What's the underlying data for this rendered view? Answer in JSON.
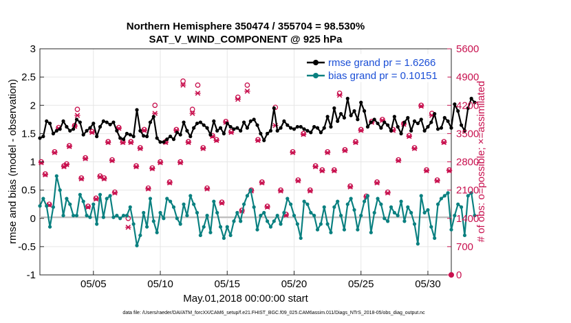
{
  "chart_data": {
    "type": "line",
    "title": "Northern Hemisphere 350474 / 355704 = 98.530%",
    "subtitle": "SAT_V_WIND_COMPONENT @ 925 hPa",
    "xlabel": "May.01,2018 00:00:00 start",
    "ylabel": "rmse and bias (model - observation)",
    "ylabel_right": "# of obs: o=possible; ×=assimilated",
    "footer": "data file: /Users/raeder/DAI/ATM_forcXX/CAM6_setup/f.e21.FHIST_BGC.f09_025.CAM6assim.011/Diags_NTrS_2018-05/obs_diag_output.nc",
    "xlim": [
      1,
      31.75
    ],
    "ylim": [
      -1,
      3
    ],
    "ylim_right": [
      0,
      5600
    ],
    "x_ticks": [
      5,
      10,
      15,
      20,
      25,
      30
    ],
    "x_tick_labels": [
      "05/05",
      "05/10",
      "05/15",
      "05/20",
      "05/25",
      "05/30"
    ],
    "y_ticks": [
      -1,
      -0.5,
      0,
      0.5,
      1,
      1.5,
      2,
      2.5,
      3
    ],
    "y_tick_labels": [
      "-1",
      "-0.5",
      "0",
      "0.5",
      "1",
      "1.5",
      "2",
      "2.5",
      "3"
    ],
    "y_right_ticks": [
      0,
      700,
      1400,
      2100,
      2800,
      3500,
      4200,
      4900,
      5600
    ],
    "y_right_tick_labels": [
      "0",
      "700",
      "1400",
      "2100",
      "2800",
      "3500",
      "4200",
      "4900",
      "5600"
    ],
    "grid": true,
    "legend_position": "top-right",
    "x_start": 1.0,
    "x_step": 0.25,
    "series": [
      {
        "name": "rmse grand pr = 1.6266",
        "color": "#000000",
        "marker": "filled-circle",
        "values": [
          1.42,
          1.45,
          1.72,
          1.68,
          1.5,
          1.55,
          1.58,
          1.72,
          1.62,
          1.55,
          1.58,
          1.75,
          1.7,
          1.48,
          1.55,
          1.6,
          1.68,
          1.45,
          1.62,
          1.72,
          1.7,
          1.66,
          1.7,
          1.55,
          1.42,
          1.4,
          1.5,
          1.48,
          1.45,
          1.92,
          1.55,
          1.46,
          1.45,
          1.7,
          1.8,
          1.42,
          1.35,
          1.35,
          1.4,
          1.45,
          1.4,
          1.52,
          1.48,
          1.7,
          1.55,
          1.45,
          1.6,
          1.68,
          1.7,
          1.65,
          1.6,
          1.48,
          1.72,
          1.55,
          1.6,
          1.5,
          1.68,
          1.62,
          1.58,
          1.6,
          1.55,
          1.7,
          1.6,
          1.72,
          1.75,
          1.65,
          1.5,
          1.38,
          1.5,
          1.55,
          1.95,
          1.55,
          1.6,
          1.72,
          1.65,
          1.6,
          1.58,
          1.62,
          1.62,
          1.58,
          1.55,
          1.52,
          1.62,
          1.6,
          1.52,
          1.6,
          1.8,
          1.62,
          1.95,
          1.72,
          1.85,
          1.78,
          2.12,
          1.82,
          1.9,
          1.75,
          2.05,
          1.9,
          1.62,
          1.7,
          1.75,
          1.68,
          1.6,
          1.7,
          1.65,
          1.55,
          1.8,
          1.62,
          1.5,
          1.7,
          1.78,
          1.55,
          1.72,
          1.68,
          1.75,
          1.55,
          1.62,
          1.7,
          1.85,
          1.58,
          1.6,
          1.78,
          1.72,
          1.6,
          2.02,
          1.9,
          1.65,
          1.55,
          1.95,
          2.12,
          2.05
        ]
      },
      {
        "name": "bias grand pr = 0.10151",
        "color": "#0a8080",
        "marker": "filled-circle",
        "values": [
          0.22,
          0.35,
          0.22,
          -0.15,
          0.2,
          0.75,
          0.5,
          0.05,
          0.35,
          0.25,
          0.05,
          0.05,
          0.42,
          0.3,
          0.05,
          0.02,
          0.25,
          -0.1,
          0.42,
          0.02,
          0.35,
          0.4,
          0.02,
          0.05,
          0.0,
          0.05,
          0.05,
          0.2,
          -0.1,
          -0.48,
          -0.3,
          0.1,
          -0.15,
          0.35,
          -0.05,
          -0.25,
          0.1,
          0.0,
          0.35,
          0.3,
          0.2,
          0.0,
          -0.1,
          0.25,
          0.05,
          0.4,
          0.25,
          0.1,
          -0.3,
          -0.15,
          0.05,
          -0.25,
          0.3,
          0.1,
          -0.15,
          -0.35,
          -0.15,
          -0.3,
          -0.05,
          0.1,
          -0.05,
          0.25,
          0.4,
          0.5,
          0.2,
          -0.2,
          0.05,
          0.1,
          -0.05,
          -0.15,
          -0.05,
          0.05,
          -0.1,
          0.1,
          0.35,
          0.25,
          0.05,
          -0.1,
          -0.35,
          0.3,
          0.25,
          0.1,
          0.05,
          -0.2,
          -0.1,
          0.2,
          -0.1,
          -0.25,
          0.2,
          0.3,
          0.05,
          -0.2,
          0.25,
          0.35,
          0.15,
          -0.2,
          0.05,
          0.3,
          0.4,
          -0.25,
          0.1,
          0.35,
          0.25,
          0.0,
          -0.05,
          0.2,
          0.1,
          0.05,
          0.3,
          -0.05,
          0.2,
          0.1,
          -0.1,
          -0.45,
          0.4,
          0.1,
          0.15,
          -0.15,
          -0.35,
          0.25,
          0.35,
          0.4,
          0.45,
          -0.2,
          0.05,
          0.25,
          0.2,
          -0.3,
          0.4,
          0.45,
          0.05
        ]
      }
    ],
    "obs_color": "#c8104e",
    "obs_possible": [
      {
        "x": 1.1,
        "y": 2800
      },
      {
        "x": 1.4,
        "y": 2500
      },
      {
        "x": 1.7,
        "y": 1750
      },
      {
        "x": 2.1,
        "y": 3050
      },
      {
        "x": 2.4,
        "y": 3650
      },
      {
        "x": 2.8,
        "y": 2700
      },
      {
        "x": 3.0,
        "y": 2750
      },
      {
        "x": 3.2,
        "y": 3200
      },
      {
        "x": 3.6,
        "y": 3700
      },
      {
        "x": 3.8,
        "y": 4100
      },
      {
        "x": 4.1,
        "y": 2400
      },
      {
        "x": 4.4,
        "y": 2900
      },
      {
        "x": 4.6,
        "y": 1700
      },
      {
        "x": 4.9,
        "y": 3550
      },
      {
        "x": 5.2,
        "y": 1900
      },
      {
        "x": 5.5,
        "y": 2450
      },
      {
        "x": 5.8,
        "y": 2400
      },
      {
        "x": 6.1,
        "y": 3300
      },
      {
        "x": 6.4,
        "y": 2850
      },
      {
        "x": 6.6,
        "y": 2050
      },
      {
        "x": 6.9,
        "y": 3650
      },
      {
        "x": 7.2,
        "y": 3300
      },
      {
        "x": 7.6,
        "y": 1400
      },
      {
        "x": 7.8,
        "y": 3300
      },
      {
        "x": 8.2,
        "y": 2700
      },
      {
        "x": 8.5,
        "y": 3150
      },
      {
        "x": 8.8,
        "y": 3600
      },
      {
        "x": 9.1,
        "y": 2150
      },
      {
        "x": 9.4,
        "y": 2650
      },
      {
        "x": 9.6,
        "y": 4200
      },
      {
        "x": 10.0,
        "y": 2800
      },
      {
        "x": 10.4,
        "y": 3300
      },
      {
        "x": 10.7,
        "y": 2300
      },
      {
        "x": 11.2,
        "y": 3600
      },
      {
        "x": 11.5,
        "y": 2800
      },
      {
        "x": 11.7,
        "y": 4800
      },
      {
        "x": 12.1,
        "y": 3300
      },
      {
        "x": 12.4,
        "y": 4100
      },
      {
        "x": 12.8,
        "y": 4700
      },
      {
        "x": 13.2,
        "y": 3150
      },
      {
        "x": 13.5,
        "y": 2150
      },
      {
        "x": 13.9,
        "y": 3450
      },
      {
        "x": 14.2,
        "y": 3350
      },
      {
        "x": 14.6,
        "y": 1800
      },
      {
        "x": 14.9,
        "y": 3800
      },
      {
        "x": 15.3,
        "y": 3550
      },
      {
        "x": 15.8,
        "y": 4400
      },
      {
        "x": 16.1,
        "y": 1600
      },
      {
        "x": 16.5,
        "y": 4700
      },
      {
        "x": 16.8,
        "y": 2100
      },
      {
        "x": 17.3,
        "y": 3350
      },
      {
        "x": 17.6,
        "y": 2300
      },
      {
        "x": 18.0,
        "y": 1700
      },
      {
        "x": 18.6,
        "y": 4150
      },
      {
        "x": 19.0,
        "y": 2100
      },
      {
        "x": 19.4,
        "y": 1500
      },
      {
        "x": 19.9,
        "y": 3050
      },
      {
        "x": 20.3,
        "y": 2350
      },
      {
        "x": 20.7,
        "y": 3500
      },
      {
        "x": 21.2,
        "y": 2100
      },
      {
        "x": 21.6,
        "y": 2700
      },
      {
        "x": 22.1,
        "y": 2600
      },
      {
        "x": 22.5,
        "y": 3050
      },
      {
        "x": 23.0,
        "y": 2600
      },
      {
        "x": 23.4,
        "y": 4500
      },
      {
        "x": 23.8,
        "y": 3100
      },
      {
        "x": 24.2,
        "y": 2200
      },
      {
        "x": 24.6,
        "y": 3300
      },
      {
        "x": 25.0,
        "y": 3600
      },
      {
        "x": 25.4,
        "y": 1950
      },
      {
        "x": 25.8,
        "y": 3800
      },
      {
        "x": 26.2,
        "y": 2300
      },
      {
        "x": 26.6,
        "y": 3850
      },
      {
        "x": 27.0,
        "y": 2050
      },
      {
        "x": 27.4,
        "y": 3600
      },
      {
        "x": 27.8,
        "y": 2850
      },
      {
        "x": 28.2,
        "y": 3750
      },
      {
        "x": 28.6,
        "y": 3450
      },
      {
        "x": 29.0,
        "y": 3150
      },
      {
        "x": 29.5,
        "y": 4200
      },
      {
        "x": 29.9,
        "y": 2600
      },
      {
        "x": 30.3,
        "y": 4000
      },
      {
        "x": 30.7,
        "y": 2350
      },
      {
        "x": 31.2,
        "y": 3300
      },
      {
        "x": 31.6,
        "y": 2600
      }
    ],
    "obs_assimilated": [
      {
        "x": 1.1,
        "y": 2780
      },
      {
        "x": 1.4,
        "y": 2480
      },
      {
        "x": 1.7,
        "y": 1730
      },
      {
        "x": 2.1,
        "y": 3030
      },
      {
        "x": 2.4,
        "y": 3630
      },
      {
        "x": 2.8,
        "y": 2680
      },
      {
        "x": 3.0,
        "y": 2730
      },
      {
        "x": 3.2,
        "y": 3180
      },
      {
        "x": 3.6,
        "y": 3680
      },
      {
        "x": 3.8,
        "y": 3950
      },
      {
        "x": 4.1,
        "y": 2380
      },
      {
        "x": 4.4,
        "y": 2880
      },
      {
        "x": 4.6,
        "y": 1680
      },
      {
        "x": 4.9,
        "y": 3530
      },
      {
        "x": 5.2,
        "y": 1880
      },
      {
        "x": 5.5,
        "y": 2430
      },
      {
        "x": 5.8,
        "y": 2380
      },
      {
        "x": 6.1,
        "y": 3280
      },
      {
        "x": 6.4,
        "y": 2830
      },
      {
        "x": 6.6,
        "y": 2030
      },
      {
        "x": 6.9,
        "y": 3630
      },
      {
        "x": 7.2,
        "y": 3280
      },
      {
        "x": 7.6,
        "y": 1180
      },
      {
        "x": 7.8,
        "y": 3280
      },
      {
        "x": 8.2,
        "y": 2680
      },
      {
        "x": 8.5,
        "y": 3130
      },
      {
        "x": 8.8,
        "y": 3580
      },
      {
        "x": 9.1,
        "y": 2130
      },
      {
        "x": 9.4,
        "y": 2630
      },
      {
        "x": 9.6,
        "y": 4000
      },
      {
        "x": 10.0,
        "y": 2780
      },
      {
        "x": 10.4,
        "y": 3280
      },
      {
        "x": 10.7,
        "y": 2280
      },
      {
        "x": 11.2,
        "y": 3580
      },
      {
        "x": 11.5,
        "y": 2780
      },
      {
        "x": 11.7,
        "y": 4700
      },
      {
        "x": 12.1,
        "y": 3280
      },
      {
        "x": 12.4,
        "y": 4000
      },
      {
        "x": 12.8,
        "y": 4500
      },
      {
        "x": 13.2,
        "y": 3130
      },
      {
        "x": 13.5,
        "y": 2130
      },
      {
        "x": 13.9,
        "y": 3430
      },
      {
        "x": 14.2,
        "y": 3330
      },
      {
        "x": 14.6,
        "y": 1780
      },
      {
        "x": 14.9,
        "y": 3780
      },
      {
        "x": 15.3,
        "y": 3530
      },
      {
        "x": 15.8,
        "y": 4350
      },
      {
        "x": 16.1,
        "y": 1580
      },
      {
        "x": 16.5,
        "y": 4550
      },
      {
        "x": 16.8,
        "y": 2080
      },
      {
        "x": 17.3,
        "y": 3330
      },
      {
        "x": 17.6,
        "y": 2280
      },
      {
        "x": 18.0,
        "y": 1680
      },
      {
        "x": 18.6,
        "y": 3700
      },
      {
        "x": 19.0,
        "y": 2080
      },
      {
        "x": 19.4,
        "y": 1480
      },
      {
        "x": 19.9,
        "y": 3030
      },
      {
        "x": 20.3,
        "y": 2330
      },
      {
        "x": 20.7,
        "y": 3480
      },
      {
        "x": 21.2,
        "y": 2080
      },
      {
        "x": 21.6,
        "y": 2680
      },
      {
        "x": 22.1,
        "y": 2580
      },
      {
        "x": 22.5,
        "y": 3030
      },
      {
        "x": 23.0,
        "y": 2580
      },
      {
        "x": 23.4,
        "y": 4450
      },
      {
        "x": 23.8,
        "y": 3080
      },
      {
        "x": 24.2,
        "y": 2180
      },
      {
        "x": 24.6,
        "y": 3280
      },
      {
        "x": 25.0,
        "y": 3580
      },
      {
        "x": 25.4,
        "y": 1930
      },
      {
        "x": 25.8,
        "y": 3780
      },
      {
        "x": 26.2,
        "y": 2280
      },
      {
        "x": 26.6,
        "y": 3830
      },
      {
        "x": 27.0,
        "y": 2030
      },
      {
        "x": 27.4,
        "y": 3580
      },
      {
        "x": 27.8,
        "y": 2830
      },
      {
        "x": 28.2,
        "y": 3730
      },
      {
        "x": 28.6,
        "y": 3430
      },
      {
        "x": 29.0,
        "y": 3130
      },
      {
        "x": 29.5,
        "y": 4180
      },
      {
        "x": 29.9,
        "y": 2580
      },
      {
        "x": 30.3,
        "y": 3950
      },
      {
        "x": 30.7,
        "y": 2330
      },
      {
        "x": 31.2,
        "y": 3280
      },
      {
        "x": 31.6,
        "y": 2580
      }
    ],
    "obs_end_point": {
      "x": 31.75,
      "y": 0
    }
  }
}
